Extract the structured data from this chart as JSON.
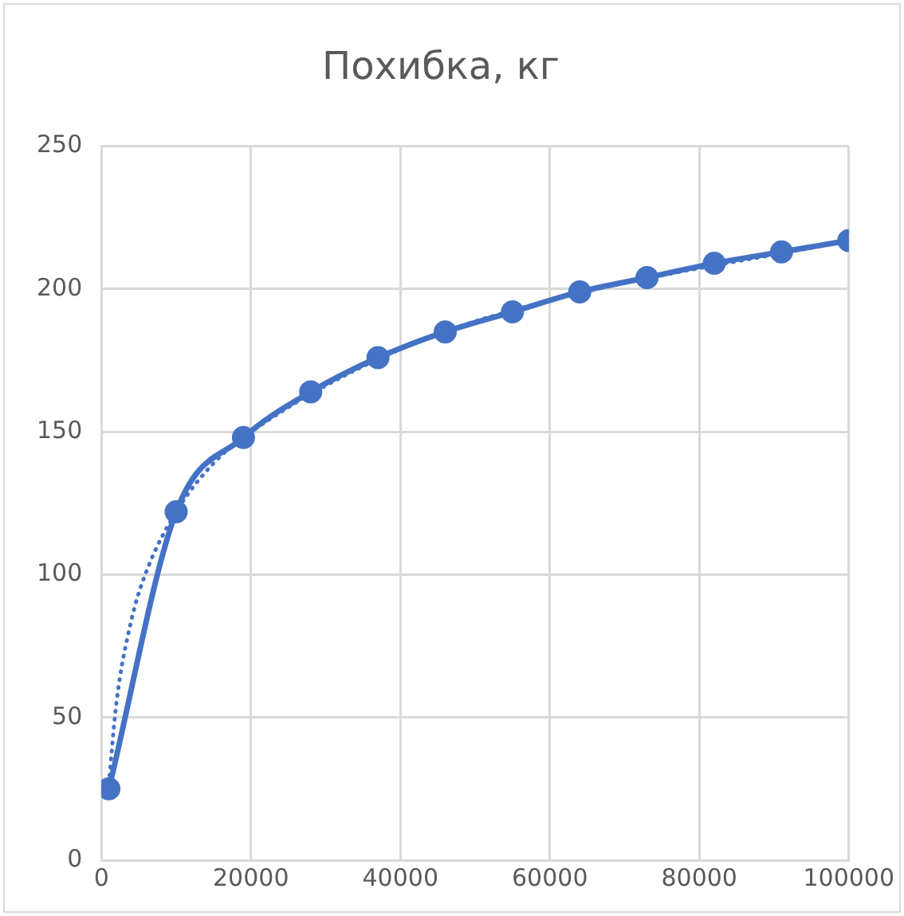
{
  "chart_data": {
    "type": "line",
    "title": "Похибка, кг",
    "xlim": [
      0,
      100000
    ],
    "xticks": [
      0,
      20000,
      40000,
      60000,
      80000,
      100000
    ],
    "ylim": [
      0,
      250
    ],
    "yticks": [
      0,
      50,
      100,
      150,
      200,
      250
    ],
    "grid": true,
    "series": [
      {
        "color": "#4472c4",
        "line_style": "dotted",
        "marker": "none",
        "x": [
          1000,
          2000,
          4000,
          6000,
          10000,
          15000,
          20000,
          40000,
          60000,
          100000
        ],
        "values": [
          27,
          55,
          84,
          101,
          122,
          139,
          150,
          179,
          196,
          217
        ]
      },
      {
        "color": "#4472c4",
        "line_style": "solid",
        "marker": "circle",
        "x": [
          1000,
          10000,
          19000,
          28000,
          37000,
          46000,
          55000,
          64000,
          73000,
          82000,
          91000,
          100000
        ],
        "values": [
          25,
          122,
          148,
          164,
          176,
          185,
          192,
          199,
          204,
          209,
          213,
          217
        ]
      }
    ]
  }
}
